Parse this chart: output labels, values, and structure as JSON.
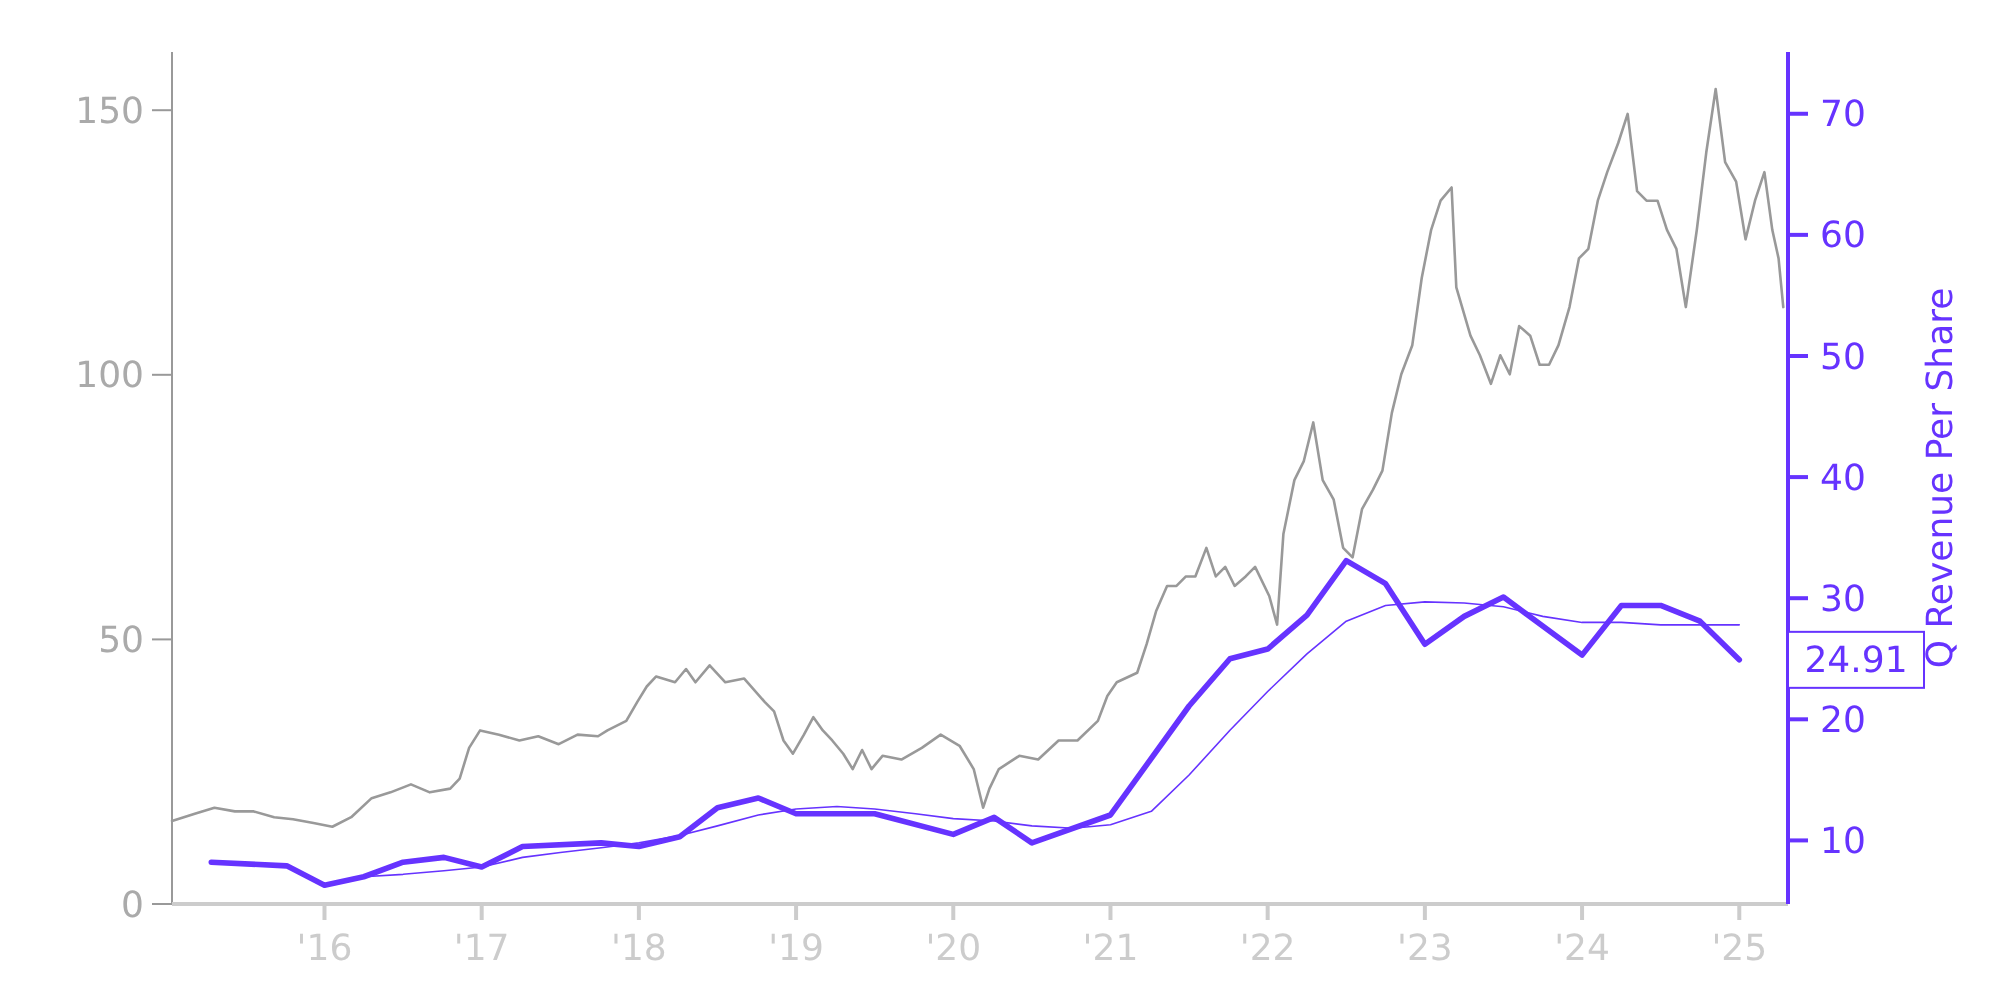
{
  "chart_data": {
    "type": "line",
    "y2label": "Q Revenue Per Share",
    "xlim": [
      2015.03,
      2025.31
    ],
    "xticks": [
      {
        "value": 2016,
        "label": "'16"
      },
      {
        "value": 2017,
        "label": "'17"
      },
      {
        "value": 2018,
        "label": "'18"
      },
      {
        "value": 2019,
        "label": "'19"
      },
      {
        "value": 2020,
        "label": "'20"
      },
      {
        "value": 2021,
        "label": "'21"
      },
      {
        "value": 2022,
        "label": "'22"
      },
      {
        "value": 2023,
        "label": "'23"
      },
      {
        "value": 2024,
        "label": "'24"
      },
      {
        "value": 2025,
        "label": "'25"
      }
    ],
    "ylim": [
      0,
      161
    ],
    "yticks": [
      0,
      50,
      100,
      150
    ],
    "y2lim": [
      4.75,
      75.1
    ],
    "y2ticks": [
      10,
      20,
      30,
      40,
      50,
      60,
      70
    ],
    "grid": false,
    "marker": "none",
    "line_style": "solid",
    "annotations": [
      "24.91"
    ],
    "series": [
      {
        "color": "#999999",
        "x": [
          2015.03,
          2015.18,
          2015.3,
          2015.43,
          2015.55,
          2015.68,
          2015.8,
          2015.93,
          2016.05,
          2016.17,
          2016.3,
          2016.42,
          2016.55,
          2016.67,
          2016.8,
          2016.86,
          2016.92,
          2016.99,
          2017.11,
          2017.24,
          2017.36,
          2017.49,
          2017.61,
          2017.74,
          2017.8,
          2017.92,
          2017.99,
          2018.05,
          2018.11,
          2018.23,
          2018.3,
          2018.36,
          2018.45,
          2018.55,
          2018.67,
          2018.8,
          2018.86,
          2018.92,
          2018.98,
          2019.05,
          2019.11,
          2019.17,
          2019.23,
          2019.3,
          2019.36,
          2019.42,
          2019.48,
          2019.55,
          2019.67,
          2019.8,
          2019.92,
          2020.04,
          2020.13,
          2020.19,
          2020.23,
          2020.29,
          2020.42,
          2020.54,
          2020.67,
          2020.79,
          2020.92,
          2020.98,
          2021.04,
          2021.17,
          2021.23,
          2021.29,
          2021.36,
          2021.42,
          2021.48,
          2021.54,
          2021.61,
          2021.67,
          2021.73,
          2021.79,
          2021.86,
          2021.92,
          2022.01,
          2022.06,
          2022.1,
          2022.17,
          2022.23,
          2022.29,
          2022.35,
          2022.42,
          2022.48,
          2022.54,
          2022.6,
          2022.67,
          2022.73,
          2022.79,
          2022.85,
          2022.92,
          2022.98,
          2023.04,
          2023.1,
          2023.17,
          2023.2,
          2023.29,
          2023.35,
          2023.42,
          2023.48,
          2023.54,
          2023.6,
          2023.67,
          2023.73,
          2023.79,
          2023.85,
          2023.92,
          2023.98,
          2024.04,
          2024.1,
          2024.16,
          2024.23,
          2024.29,
          2024.35,
          2024.41,
          2024.48,
          2024.54,
          2024.6,
          2024.66,
          2024.73,
          2024.79,
          2024.85,
          2024.91,
          2024.98,
          2025.04,
          2025.1,
          2025.16,
          2025.21,
          2025.25,
          2025.28
        ],
        "values": [
          15.7,
          17.1,
          18.2,
          17.5,
          17.5,
          16.4,
          16.0,
          15.3,
          14.6,
          16.4,
          20.0,
          21.1,
          22.6,
          21.1,
          21.8,
          23.7,
          29.5,
          32.8,
          32.0,
          30.9,
          31.7,
          30.2,
          32.0,
          31.7,
          32.8,
          34.6,
          38.2,
          41.1,
          43.0,
          41.9,
          44.4,
          41.9,
          45.1,
          41.9,
          42.6,
          38.2,
          36.4,
          30.9,
          28.4,
          32.0,
          35.3,
          32.8,
          30.9,
          28.4,
          25.5,
          29.1,
          25.5,
          28.0,
          27.3,
          29.5,
          32.0,
          29.9,
          25.5,
          18.2,
          21.8,
          25.5,
          28.0,
          27.3,
          30.9,
          30.9,
          34.6,
          39.3,
          41.9,
          43.7,
          49.1,
          55.3,
          60.1,
          60.1,
          61.9,
          61.9,
          67.3,
          61.9,
          63.7,
          60.1,
          61.9,
          63.7,
          58.2,
          52.8,
          69.9,
          80.1,
          83.7,
          91.0,
          80.1,
          76.4,
          67.3,
          65.5,
          74.6,
          78.3,
          81.9,
          92.8,
          100.1,
          105.6,
          118.3,
          127.4,
          132.9,
          135.4,
          116.5,
          107.4,
          103.7,
          98.3,
          103.7,
          100.1,
          109.2,
          107.4,
          101.9,
          101.9,
          105.6,
          112.8,
          122.0,
          123.8,
          132.9,
          138.3,
          143.8,
          149.3,
          134.7,
          132.9,
          132.9,
          127.4,
          123.8,
          112.8,
          127.4,
          142.0,
          154.0,
          140.2,
          136.5,
          125.6,
          132.9,
          138.3,
          127.4,
          122.0,
          112.8
        ]
      },
      {
        "color": "#6633ff",
        "axis": "y2",
        "x": [
          2015.28,
          2015.76,
          2016.0,
          2016.25,
          2016.5,
          2016.76,
          2017.0,
          2017.26,
          2017.76,
          2018.0,
          2018.26,
          2018.5,
          2018.76,
          2019.0,
          2019.5,
          2020.0,
          2020.26,
          2020.5,
          2021.0,
          2021.5,
          2021.76,
          2022.0,
          2022.25,
          2022.5,
          2022.75,
          2023.0,
          2023.25,
          2023.5,
          2024.0,
          2024.25,
          2024.5,
          2024.75,
          2025.0
        ],
        "values": [
          8.2,
          7.9,
          6.3,
          7.0,
          8.2,
          8.6,
          7.8,
          9.5,
          9.8,
          9.5,
          10.3,
          12.7,
          13.5,
          12.2,
          12.2,
          10.5,
          11.9,
          9.8,
          12.1,
          21.1,
          25.0,
          25.8,
          28.6,
          33.1,
          31.2,
          26.2,
          28.5,
          30.1,
          25.3,
          29.4,
          29.4,
          28.1,
          24.91
        ]
      },
      {
        "color": "#6633ff",
        "axis": "y2",
        "x": [
          2016.25,
          2016.5,
          2016.76,
          2017.0,
          2017.26,
          2017.5,
          2017.76,
          2018.0,
          2018.26,
          2018.5,
          2018.76,
          2019.0,
          2019.26,
          2019.5,
          2019.76,
          2020.0,
          2020.26,
          2020.5,
          2020.76,
          2021.0,
          2021.26,
          2021.5,
          2021.76,
          2022.0,
          2022.25,
          2022.5,
          2022.75,
          2023.0,
          2023.25,
          2023.5,
          2023.75,
          2024.0,
          2024.25,
          2024.5,
          2024.75,
          2025.0
        ],
        "values": [
          7.0,
          7.2,
          7.5,
          7.8,
          8.6,
          9.0,
          9.4,
          9.8,
          10.4,
          11.2,
          12.1,
          12.6,
          12.8,
          12.6,
          12.2,
          11.8,
          11.6,
          11.2,
          11.0,
          11.3,
          12.4,
          15.4,
          19.1,
          22.3,
          25.4,
          28.1,
          29.4,
          29.7,
          29.6,
          29.3,
          28.5,
          28.0,
          28.0,
          27.8,
          27.8,
          27.8
        ]
      }
    ]
  }
}
